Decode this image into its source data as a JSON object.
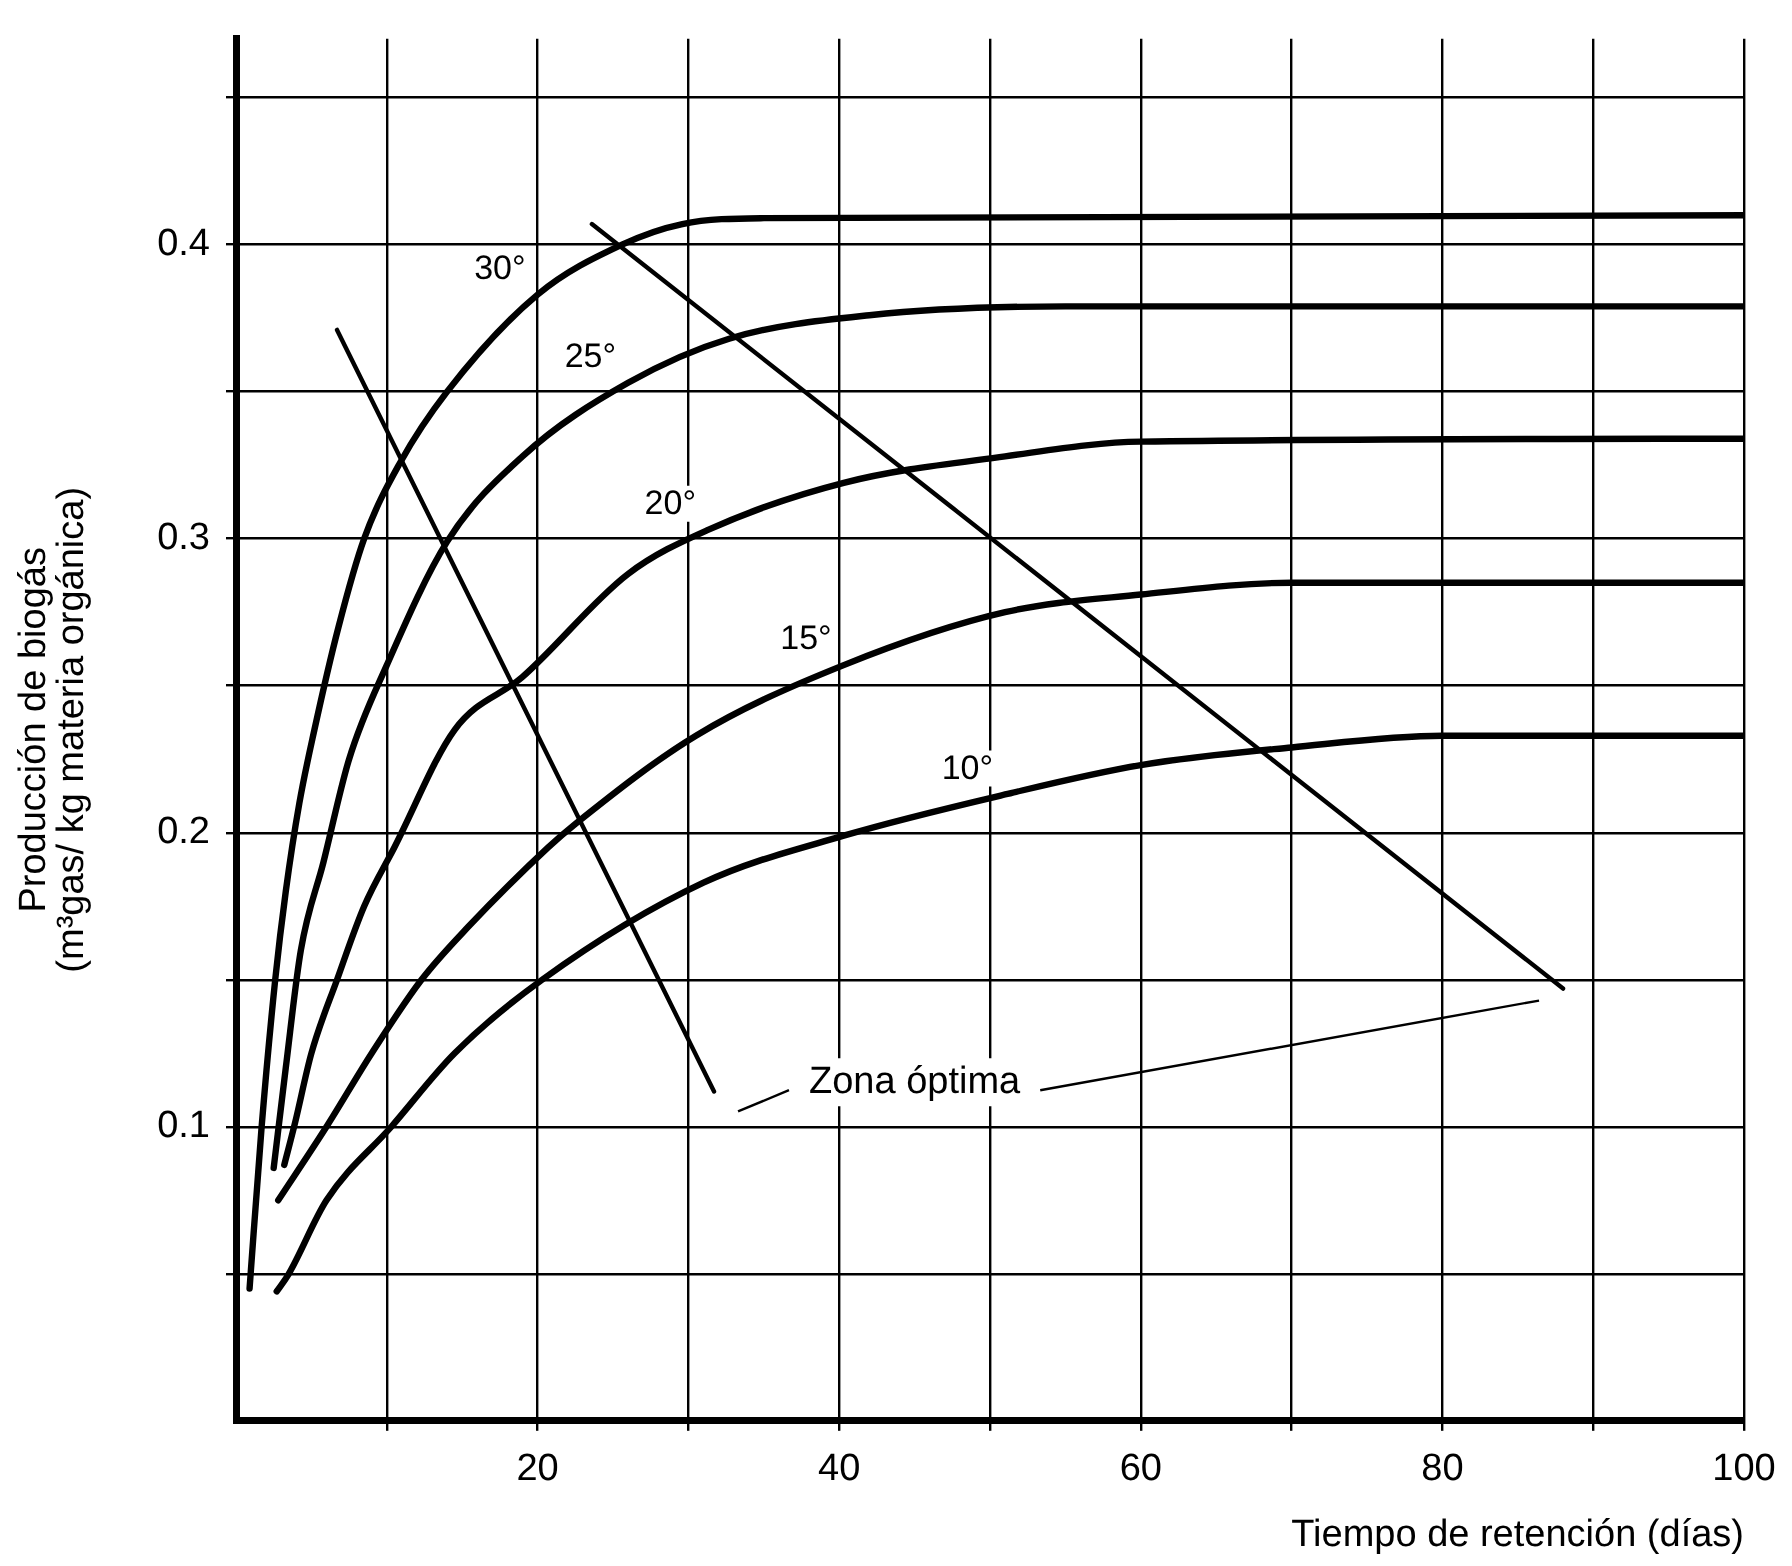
{
  "chart_data": {
    "type": "line",
    "xlabel": "Tiempo de retención (días)",
    "ylabel": "Producción de biogás\n(m³gas/ kg materia orgánica)",
    "xlim": [
      0,
      100
    ],
    "ylim": [
      0,
      0.47
    ],
    "xticks": [
      {
        "value": 10,
        "label": null
      },
      20,
      {
        "value": 30,
        "label": null
      },
      40,
      {
        "value": 50,
        "label": null
      },
      60,
      {
        "value": 70,
        "label": null
      },
      80,
      {
        "value": 90,
        "label": null
      },
      100
    ],
    "yticks": [
      {
        "value": 0.05,
        "label": null
      },
      0.1,
      {
        "value": 0.15,
        "label": null
      },
      0.2,
      {
        "value": 0.25,
        "label": null
      },
      0.3,
      {
        "value": 0.35,
        "label": null
      },
      0.4,
      {
        "value": 0.45,
        "label": null
      }
    ],
    "grid": true,
    "legend": false,
    "marker": "none",
    "line_style": "solid",
    "series": [
      {
        "name": "30°",
        "color": "#000000",
        "x": [
          0.9,
          1.7,
          2.6,
          3.3,
          4.2,
          5.2,
          6.8,
          8.5,
          10.9,
          14,
          20,
          25.6,
          29.6,
          35,
          100
        ],
        "values": [
          0.045,
          0.1,
          0.15,
          0.18,
          0.21,
          0.235,
          0.27,
          0.3,
          0.326,
          0.35,
          0.383,
          0.4,
          0.407,
          0.409,
          0.41
        ]
      },
      {
        "name": "25°",
        "color": "#000000",
        "x": [
          2.5,
          3.3,
          4.3,
          5.8,
          7.5,
          10,
          14,
          19,
          26,
          32.7,
          42,
          55,
          100
        ],
        "values": [
          0.086,
          0.12,
          0.16,
          0.19,
          0.225,
          0.257,
          0.299,
          0.328,
          0.353,
          0.368,
          0.376,
          0.379,
          0.379
        ]
      },
      {
        "name": "20°",
        "color": "#000000",
        "x": [
          3.2,
          3.9,
          5,
          6.7,
          8.5,
          10.5,
          14.5,
          19,
          26,
          31.3,
          40.3,
          51,
          60,
          100
        ],
        "values": [
          0.087,
          0.101,
          0.125,
          0.15,
          0.175,
          0.195,
          0.235,
          0.253,
          0.288,
          0.303,
          0.319,
          0.328,
          0.333,
          0.334
        ]
      },
      {
        "name": "15°",
        "color": "#000000",
        "x": [
          2.8,
          6,
          9,
          12.3,
          15.4,
          20.7,
          22.5,
          30.5,
          40.3,
          51,
          60,
          70,
          100
        ],
        "values": [
          0.075,
          0.1,
          0.125,
          0.15,
          0.168,
          0.195,
          0.203,
          0.233,
          0.257,
          0.275,
          0.281,
          0.285,
          0.285
        ]
      },
      {
        "name": "10°",
        "color": "#000000",
        "x": [
          2.7,
          3.5,
          6,
          10.3,
          14.5,
          20.3,
          31,
          40.3,
          51,
          60,
          70,
          80,
          100
        ],
        "values": [
          0.044,
          0.05,
          0.075,
          0.1,
          0.125,
          0.15,
          0.183,
          0.199,
          0.213,
          0.223,
          0.229,
          0.233,
          0.233
        ]
      },
      {
        "color": "#000000",
        "x": [
          6.7,
          31.7
        ],
        "values": [
          0.371,
          0.112
        ]
      },
      {
        "color": "#000000",
        "x": [
          23.6,
          88
        ],
        "values": [
          0.407,
          0.147
        ]
      }
    ],
    "annotations": [
      "Zona óptima"
    ]
  }
}
